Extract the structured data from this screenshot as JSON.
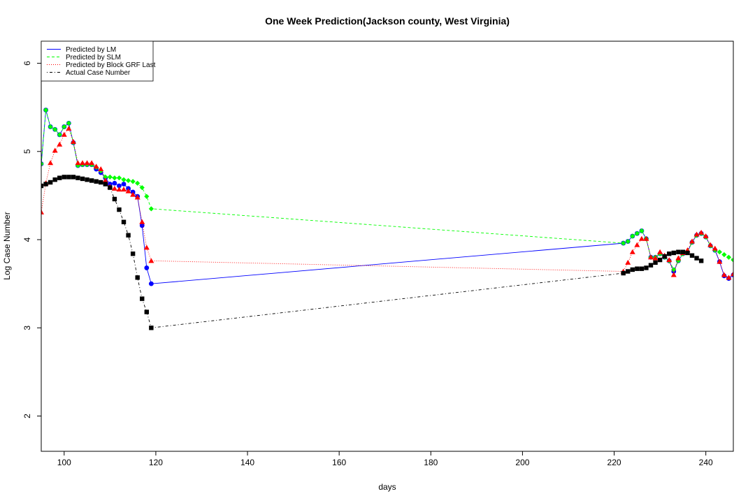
{
  "chart_data": {
    "type": "line",
    "title": "One Week Prediction(Jackson county, West Virginia)",
    "xlabel": "days",
    "ylabel": "Log Case Number",
    "xlim": [
      95,
      246
    ],
    "ylim": [
      1.6,
      6.25
    ],
    "x_ticks": [
      100,
      120,
      140,
      160,
      180,
      200,
      220,
      240
    ],
    "y_ticks": [
      2,
      3,
      4,
      5,
      6
    ],
    "grid": false,
    "legend_position": "top-left",
    "x": [
      95,
      96,
      97,
      98,
      99,
      100,
      101,
      102,
      103,
      104,
      105,
      106,
      107,
      108,
      109,
      110,
      111,
      112,
      113,
      114,
      115,
      116,
      117,
      118,
      119,
      222,
      223,
      224,
      225,
      226,
      227,
      228,
      229,
      230,
      231,
      232,
      233,
      234,
      235,
      236,
      237,
      238,
      239,
      240,
      241,
      242,
      243,
      244,
      245,
      246
    ],
    "series": [
      {
        "name": "Predicted by LM",
        "color": "#0000ff",
        "line": "solid",
        "marker": "circle",
        "values": [
          4.86,
          5.47,
          5.28,
          5.25,
          5.19,
          5.28,
          5.32,
          5.1,
          4.84,
          4.85,
          4.85,
          4.85,
          4.8,
          4.76,
          4.7,
          4.63,
          4.64,
          4.61,
          4.63,
          4.58,
          4.54,
          4.49,
          4.16,
          3.68,
          3.5,
          3.96,
          3.98,
          4.04,
          4.07,
          4.1,
          4.01,
          3.8,
          3.8,
          3.84,
          3.8,
          3.76,
          3.64,
          3.76,
          3.84,
          3.86,
          3.97,
          4.05,
          4.07,
          4.03,
          3.93,
          3.88,
          3.75,
          3.59,
          3.56,
          3.6
        ]
      },
      {
        "name": "Predicted by SLM",
        "color": "#00ff00",
        "line": "dashed",
        "marker": "diamond",
        "values": [
          4.86,
          5.47,
          5.28,
          5.25,
          5.19,
          5.28,
          5.32,
          5.1,
          4.84,
          4.85,
          4.85,
          4.85,
          4.82,
          4.78,
          4.71,
          4.71,
          4.7,
          4.7,
          4.68,
          4.67,
          4.66,
          4.64,
          4.59,
          4.49,
          4.35,
          3.96,
          3.98,
          4.04,
          4.07,
          4.1,
          4.01,
          3.8,
          3.8,
          3.84,
          3.8,
          3.76,
          3.66,
          3.76,
          3.84,
          3.86,
          3.97,
          4.05,
          4.07,
          4.03,
          3.93,
          3.88,
          3.86,
          3.83,
          3.8,
          3.77
        ]
      },
      {
        "name": "Predicted by Block GRF Last",
        "color": "#ff0000",
        "line": "dotted",
        "marker": "triangle",
        "values": [
          4.31,
          4.64,
          4.87,
          5.01,
          5.08,
          5.19,
          5.26,
          5.11,
          4.87,
          4.87,
          4.87,
          4.87,
          4.83,
          4.8,
          4.67,
          4.6,
          4.58,
          4.57,
          4.57,
          4.55,
          4.51,
          4.48,
          4.2,
          3.91,
          3.76,
          3.64,
          3.74,
          3.86,
          3.94,
          4.01,
          4.01,
          3.8,
          3.79,
          3.86,
          3.82,
          3.77,
          3.6,
          3.79,
          3.85,
          3.88,
          3.98,
          4.06,
          4.08,
          4.04,
          3.94,
          3.9,
          3.75,
          3.6,
          3.57,
          3.61
        ]
      },
      {
        "name": "Actual Case Number",
        "color": "#000000",
        "line": "dotdash",
        "marker": "square",
        "values": [
          4.61,
          4.63,
          4.65,
          4.68,
          4.7,
          4.71,
          4.71,
          4.71,
          4.7,
          4.69,
          4.68,
          4.67,
          4.66,
          4.65,
          4.63,
          4.59,
          4.46,
          4.34,
          4.2,
          4.05,
          3.84,
          3.57,
          3.33,
          3.18,
          3.0,
          3.62,
          3.64,
          3.66,
          3.67,
          3.67,
          3.68,
          3.71,
          3.74,
          3.77,
          3.81,
          3.84,
          3.85,
          3.86,
          3.86,
          3.85,
          3.82,
          3.79,
          3.76,
          null,
          null,
          null,
          null,
          null,
          null,
          null
        ]
      }
    ]
  }
}
